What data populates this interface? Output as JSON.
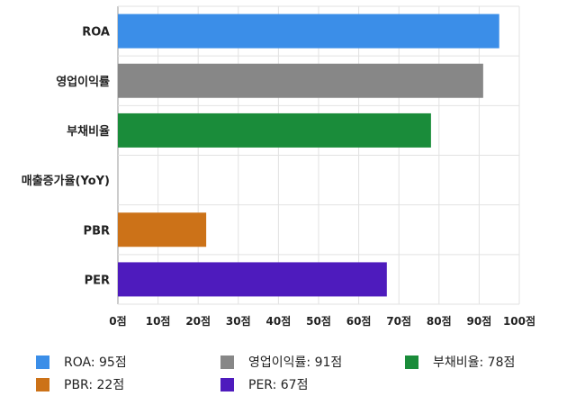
{
  "chart_data": {
    "type": "bar",
    "orientation": "horizontal",
    "categories": [
      "ROA",
      "영업이익률",
      "부채비율",
      "매출증가율(YoY)",
      "PBR",
      "PER"
    ],
    "values": [
      95,
      91,
      78,
      null,
      22,
      67
    ],
    "colors": [
      "#3b8ee8",
      "#878787",
      "#1a8c3a",
      "#ffffff",
      "#cc7218",
      "#4e1bbd"
    ],
    "xlim": [
      0,
      100
    ],
    "xticks": [
      0,
      10,
      20,
      30,
      40,
      50,
      60,
      70,
      80,
      90,
      100
    ],
    "tick_suffix": "점",
    "grid": true,
    "legend_position": "bottom"
  },
  "legend": [
    {
      "label": "ROA: 95점",
      "color": "#3b8ee8"
    },
    {
      "label": "영업이익률: 91점",
      "color": "#878787"
    },
    {
      "label": "부채비율: 78점",
      "color": "#1a8c3a"
    },
    {
      "label": "PBR: 22점",
      "color": "#cc7218"
    },
    {
      "label": "PER: 67점",
      "color": "#4e1bbd"
    }
  ]
}
